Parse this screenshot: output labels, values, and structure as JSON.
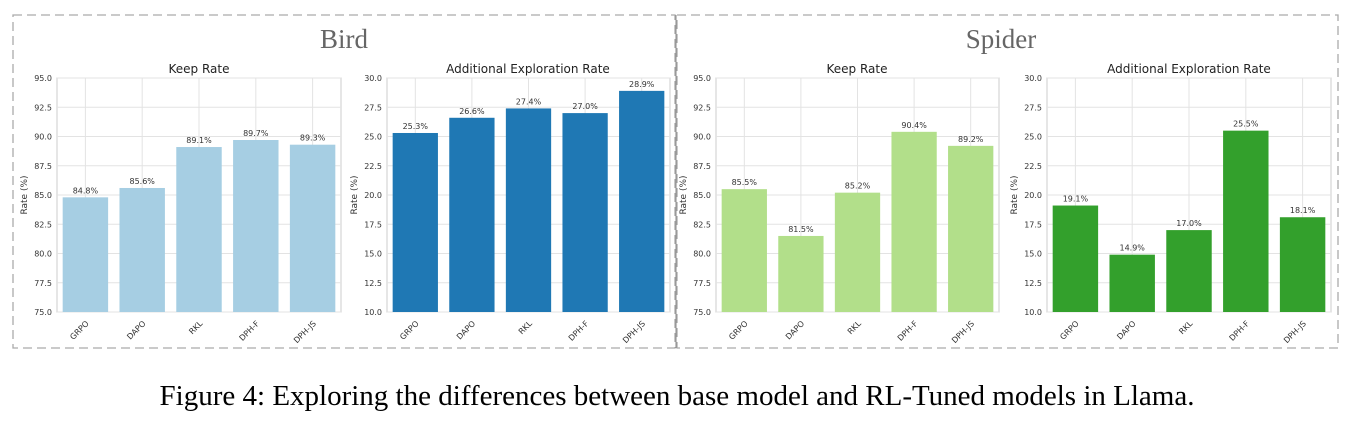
{
  "caption": "Figure 4: Exploring the differences between base model and RL-Tuned models in Llama.",
  "groups": [
    {
      "title": "Bird"
    },
    {
      "title": "Spider"
    }
  ],
  "chart_data": [
    {
      "type": "bar",
      "group": "Bird",
      "title": "Keep Rate",
      "ylabel": "Rate (%)",
      "xlabel": "",
      "categories": [
        "GRPO",
        "DAPO",
        "RKL",
        "DPH-F",
        "DPH-JS"
      ],
      "values": [
        84.8,
        85.6,
        89.1,
        89.7,
        89.3
      ],
      "labels": [
        "84.8%",
        "85.6%",
        "89.1%",
        "89.7%",
        "89.3%"
      ],
      "ylim": [
        75.0,
        95.0
      ],
      "yticks": [
        "75.0",
        "77.5",
        "80.0",
        "82.5",
        "85.0",
        "87.5",
        "90.0",
        "92.5",
        "95.0"
      ],
      "color": "#a6cee3",
      "grid": true
    },
    {
      "type": "bar",
      "group": "Bird",
      "title": "Additional Exploration Rate",
      "ylabel": "Rate (%)",
      "xlabel": "",
      "categories": [
        "GRPO",
        "DAPO",
        "RKL",
        "DPH-F",
        "DPH-JS"
      ],
      "values": [
        25.3,
        26.6,
        27.4,
        27.0,
        28.9
      ],
      "labels": [
        "25.3%",
        "26.6%",
        "27.4%",
        "27.0%",
        "28.9%"
      ],
      "ylim": [
        10.0,
        30.0
      ],
      "yticks": [
        "10.0",
        "12.5",
        "15.0",
        "17.5",
        "20.0",
        "22.5",
        "25.0",
        "27.5",
        "30.0"
      ],
      "color": "#1f78b4",
      "grid": true
    },
    {
      "type": "bar",
      "group": "Spider",
      "title": "Keep Rate",
      "ylabel": "Rate (%)",
      "xlabel": "",
      "categories": [
        "GRPO",
        "DAPO",
        "RKL",
        "DPH-F",
        "DPH-JS"
      ],
      "values": [
        85.5,
        81.5,
        85.2,
        90.4,
        89.2
      ],
      "labels": [
        "85.5%",
        "81.5%",
        "85.2%",
        "90.4%",
        "89.2%"
      ],
      "ylim": [
        75.0,
        95.0
      ],
      "yticks": [
        "75.0",
        "77.5",
        "80.0",
        "82.5",
        "85.0",
        "87.5",
        "90.0",
        "92.5",
        "95.0"
      ],
      "color": "#b2df8a",
      "grid": true
    },
    {
      "type": "bar",
      "group": "Spider",
      "title": "Additional Exploration Rate",
      "ylabel": "Rate (%)",
      "xlabel": "",
      "categories": [
        "GRPO",
        "DAPO",
        "RKL",
        "DPH-F",
        "DPH-JS"
      ],
      "values": [
        19.1,
        14.9,
        17.0,
        25.5,
        18.1
      ],
      "labels": [
        "19.1%",
        "14.9%",
        "17.0%",
        "25.5%",
        "18.1%"
      ],
      "ylim": [
        10.0,
        30.0
      ],
      "yticks": [
        "10.0",
        "12.5",
        "15.0",
        "17.5",
        "20.0",
        "22.5",
        "25.0",
        "27.5",
        "30.0"
      ],
      "color": "#33a02c",
      "grid": true
    }
  ]
}
